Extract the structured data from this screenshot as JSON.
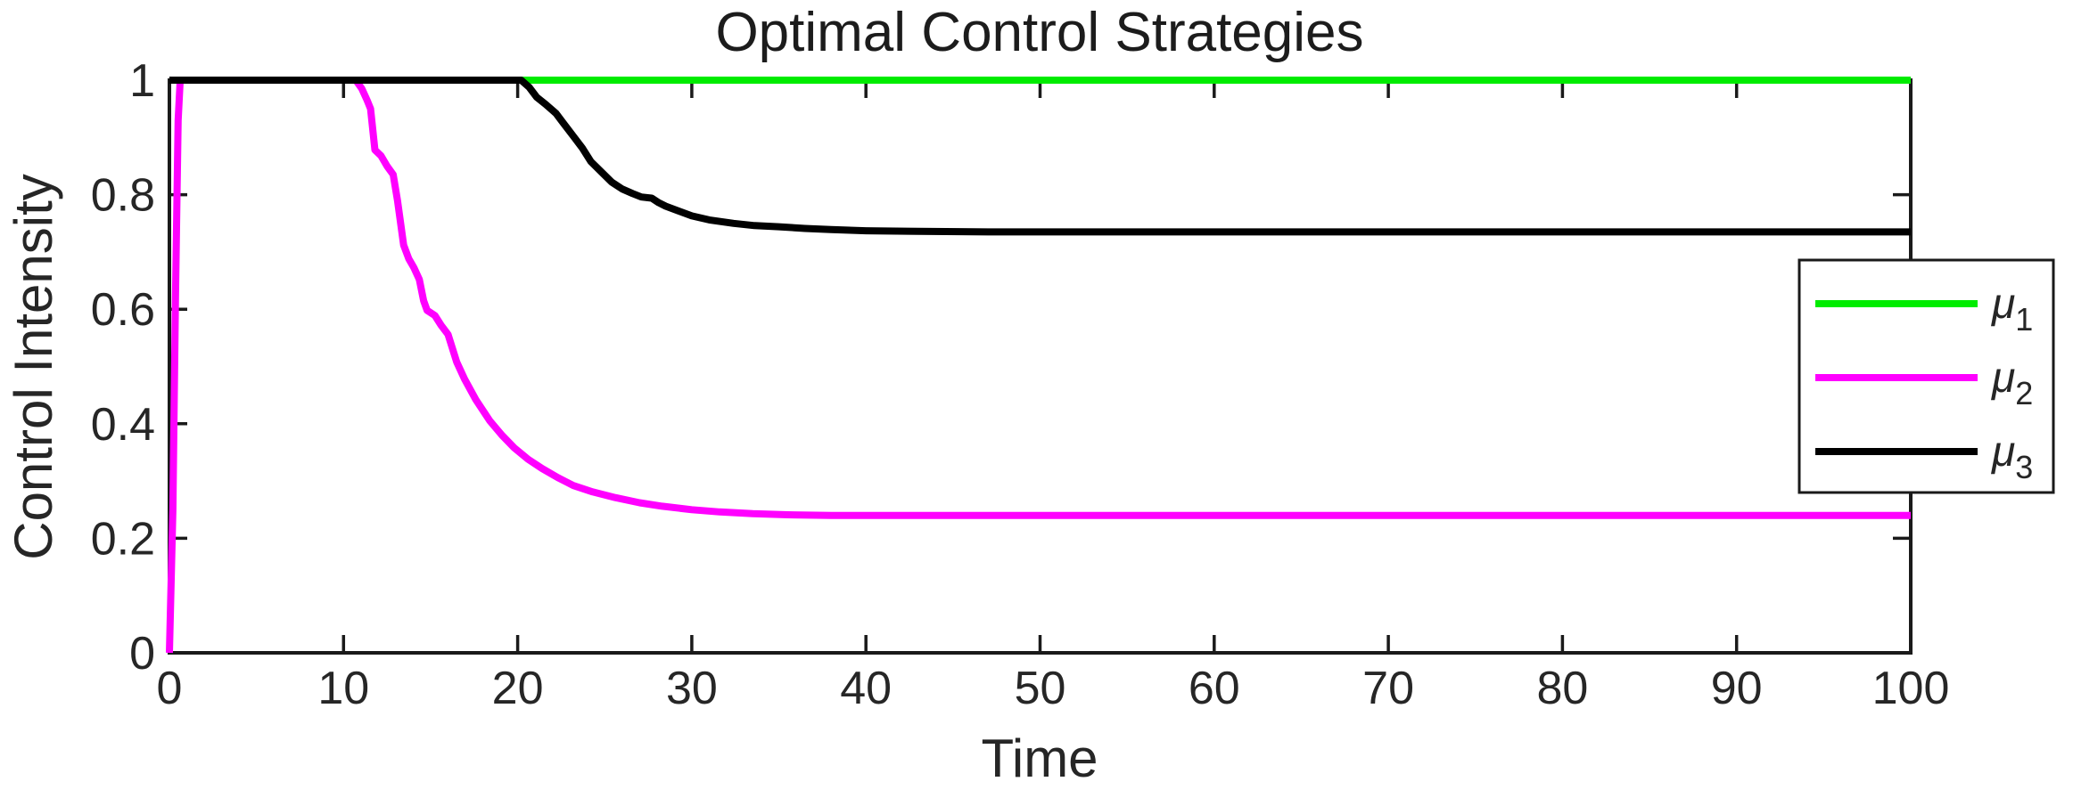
{
  "figure": {
    "title": "Optimal Control Strategies",
    "background_color": "#ffffff",
    "axis_color": "#1a1a1a",
    "text_color": "#262626"
  },
  "chart_data": {
    "type": "line",
    "title": "Optimal Control Strategies",
    "xlabel": "Time",
    "ylabel": "Control Intensity",
    "xlim": [
      0,
      100
    ],
    "ylim": [
      0,
      1
    ],
    "xticks": [
      0,
      10,
      20,
      30,
      40,
      50,
      60,
      70,
      80,
      90,
      100
    ],
    "xtick_labels": [
      "0",
      "10",
      "20",
      "30",
      "40",
      "50",
      "60",
      "70",
      "80",
      "90",
      "100"
    ],
    "yticks": [
      0,
      0.2,
      0.4,
      0.6,
      0.8,
      1
    ],
    "ytick_labels": [
      "0",
      "0.2",
      "0.4",
      "0.6",
      "0.8",
      "1"
    ],
    "grid": false,
    "box": true,
    "tick_direction": "in",
    "legend": {
      "position": "right-edge-overlapping-axis",
      "background": "#ffffff",
      "border_color": "#1a1a1a",
      "entries": [
        {
          "base": "μ",
          "sub": "1"
        },
        {
          "base": "μ",
          "sub": "2"
        },
        {
          "base": "μ",
          "sub": "3"
        }
      ]
    },
    "observed_plateaus": {
      "mu_1": 1.0,
      "mu_2": 0.24,
      "mu_3": 0.735
    },
    "series": [
      {
        "name": "mu_1",
        "color": "#00ec00",
        "line_width": 8,
        "points": [
          [
            0,
            1
          ],
          [
            100,
            1
          ]
        ]
      },
      {
        "name": "mu_2",
        "color": "#ff00ff",
        "line_width": 8,
        "points": [
          [
            0,
            0
          ],
          [
            0.2,
            0.25
          ],
          [
            0.35,
            0.62
          ],
          [
            0.5,
            0.93
          ],
          [
            0.62,
            1
          ],
          [
            10.7,
            1
          ],
          [
            11.05,
            0.985
          ],
          [
            11.35,
            0.965
          ],
          [
            11.55,
            0.95
          ],
          [
            11.8,
            0.878
          ],
          [
            12.15,
            0.868
          ],
          [
            12.5,
            0.85
          ],
          [
            12.85,
            0.835
          ],
          [
            13.1,
            0.79
          ],
          [
            13.45,
            0.712
          ],
          [
            13.75,
            0.688
          ],
          [
            14.05,
            0.672
          ],
          [
            14.35,
            0.652
          ],
          [
            14.6,
            0.615
          ],
          [
            14.8,
            0.598
          ],
          [
            15.25,
            0.589
          ],
          [
            15.6,
            0.572
          ],
          [
            16.0,
            0.556
          ],
          [
            16.5,
            0.508
          ],
          [
            16.95,
            0.478
          ],
          [
            17.6,
            0.442
          ],
          [
            18.4,
            0.405
          ],
          [
            19.1,
            0.38
          ],
          [
            19.8,
            0.358
          ],
          [
            20.6,
            0.338
          ],
          [
            21.4,
            0.322
          ],
          [
            22.3,
            0.306
          ],
          [
            23.2,
            0.292
          ],
          [
            24.3,
            0.281
          ],
          [
            25.6,
            0.271
          ],
          [
            27,
            0.262
          ],
          [
            28.3,
            0.256
          ],
          [
            30,
            0.25
          ],
          [
            31.6,
            0.246
          ],
          [
            33.5,
            0.243
          ],
          [
            35.5,
            0.241
          ],
          [
            38,
            0.24
          ],
          [
            42,
            0.24
          ],
          [
            50,
            0.24
          ],
          [
            60,
            0.24
          ],
          [
            70,
            0.24
          ],
          [
            80,
            0.24
          ],
          [
            90,
            0.24
          ],
          [
            100,
            0.24
          ]
        ]
      },
      {
        "name": "mu_3",
        "color": "#000000",
        "line_width": 8,
        "points": [
          [
            0,
            1
          ],
          [
            20.2,
            1
          ],
          [
            20.65,
            0.988
          ],
          [
            21.1,
            0.97
          ],
          [
            21.6,
            0.958
          ],
          [
            22.2,
            0.942
          ],
          [
            22.7,
            0.922
          ],
          [
            23.2,
            0.902
          ],
          [
            23.7,
            0.882
          ],
          [
            24.2,
            0.858
          ],
          [
            24.8,
            0.84
          ],
          [
            25.4,
            0.822
          ],
          [
            26,
            0.81
          ],
          [
            26.6,
            0.802
          ],
          [
            27.1,
            0.796
          ],
          [
            27.7,
            0.794
          ],
          [
            28.1,
            0.786
          ],
          [
            28.5,
            0.78
          ],
          [
            29.2,
            0.772
          ],
          [
            30,
            0.763
          ],
          [
            31,
            0.756
          ],
          [
            32.4,
            0.75
          ],
          [
            33.6,
            0.746
          ],
          [
            35,
            0.744
          ],
          [
            36.5,
            0.741
          ],
          [
            38,
            0.739
          ],
          [
            40,
            0.737
          ],
          [
            43,
            0.736
          ],
          [
            47,
            0.735
          ],
          [
            55,
            0.735
          ],
          [
            70,
            0.735
          ],
          [
            85,
            0.735
          ],
          [
            100,
            0.735
          ]
        ]
      }
    ]
  }
}
